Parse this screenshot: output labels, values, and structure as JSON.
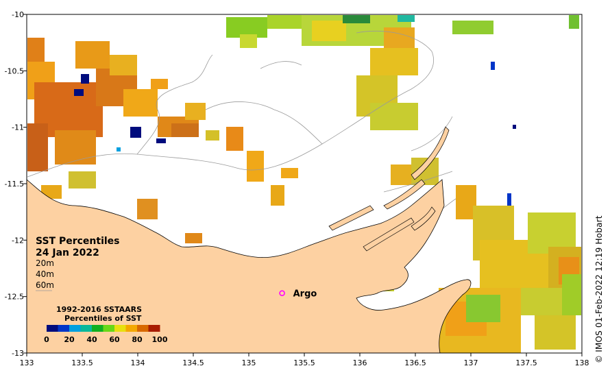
{
  "map": {
    "title": "SST Percentiles",
    "date": "24 Jan 2022",
    "depth_labels": [
      "20m",
      "40m",
      "60m"
    ],
    "argo_label": "Argo",
    "credit": "© IMOS 01-Feb-2022 12:19 Hobart",
    "x_ticks": [
      "133",
      "133.5",
      "134",
      "134.5",
      "135",
      "135.5",
      "136",
      "136.5",
      "137",
      "137.5",
      "138"
    ],
    "y_ticks": [
      "-10",
      "-10.5",
      "-11",
      "-11.5",
      "-12",
      "-12.5",
      "-13"
    ],
    "x_range": [
      133,
      138
    ],
    "y_range": [
      -13,
      -10
    ],
    "argo_position": {
      "lon": 135.3,
      "lat": -12.47
    },
    "land_color": "#fdd1a2",
    "marker_color": "#ff00ff"
  },
  "colorbar": {
    "title_line1": "1992-2016 SSTAARS",
    "title_line2": "Percentiles of SST",
    "tick_labels": [
      "0",
      "20",
      "40",
      "60",
      "80",
      "100"
    ],
    "colors": [
      "#000c7d",
      "#0035c8",
      "#00a0e0",
      "#0ab89a",
      "#10b020",
      "#68d818",
      "#e8e010",
      "#f4a800",
      "#d86800",
      "#a81c00"
    ]
  }
}
